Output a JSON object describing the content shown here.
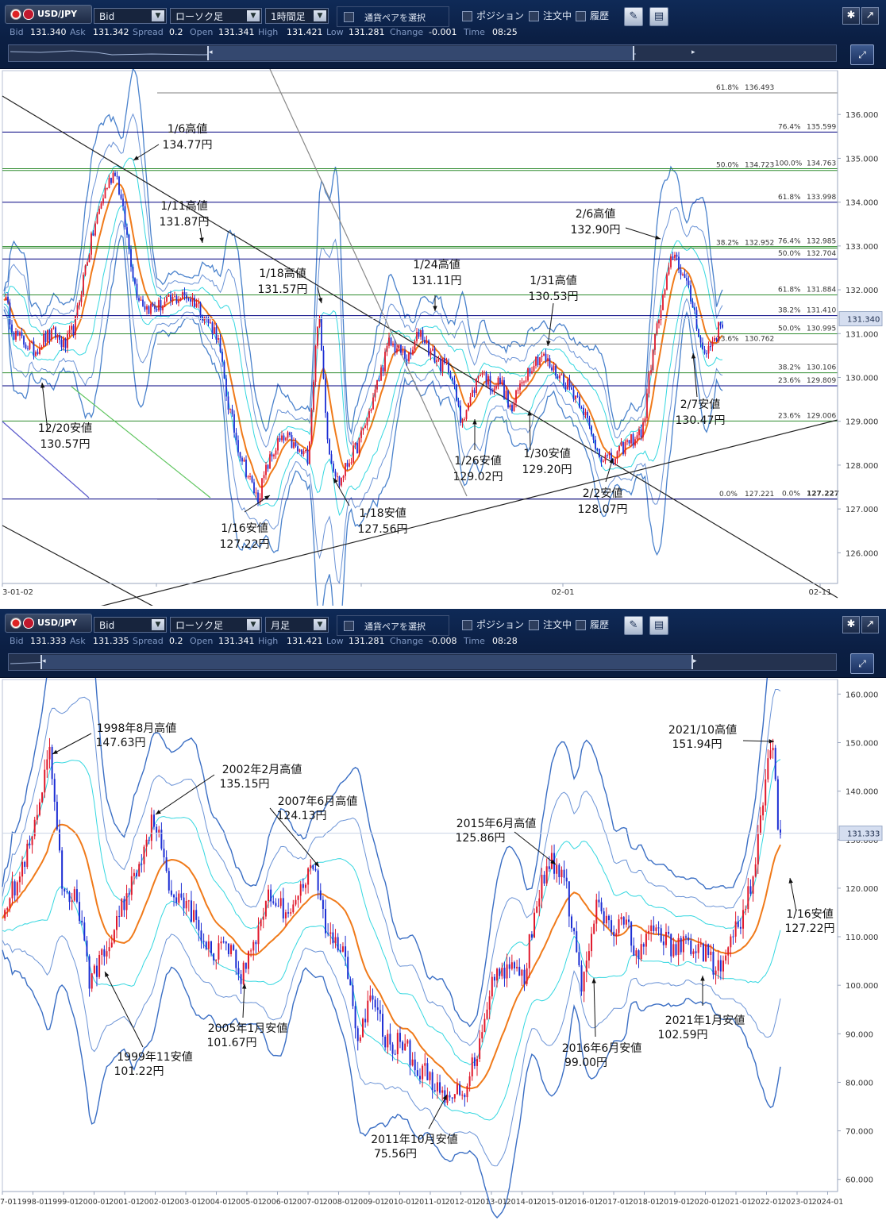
{
  "panel1": {
    "toolbar": {
      "symbol": "USD/JPY",
      "price_type": "Bid",
      "chart_type": "ローソク足",
      "timeframe": "1時間足",
      "pair_select": "通貨ペアを選択",
      "position": "ポジション",
      "orders": "注文中",
      "history": "履歴",
      "bid_label": "Bid",
      "bid": "131.340",
      "ask_label": "Ask",
      "ask": "131.342",
      "spread_label": "Spread",
      "spread": "0.2",
      "open_label": "Open",
      "open": "131.341",
      "high_label": "High",
      "high": "131.421",
      "low_label": "Low",
      "low": "131.281",
      "change_label": "Change",
      "change": "-0.001",
      "time_label": "Time",
      "time": "08:25"
    },
    "current_price": "131.340"
  },
  "panel2": {
    "toolbar": {
      "symbol": "USD/JPY",
      "price_type": "Bid",
      "chart_type": "ローソク足",
      "timeframe": "月足",
      "pair_select": "通貨ペアを選択",
      "position": "ポジション",
      "orders": "注文中",
      "history": "履歴",
      "bid_label": "Bid",
      "bid": "131.333",
      "ask_label": "Ask",
      "ask": "131.335",
      "spread_label": "Spread",
      "spread": "0.2",
      "open_label": "Open",
      "open": "131.341",
      "high_label": "High",
      "high": "131.421",
      "low_label": "Low",
      "low": "131.281",
      "change_label": "Change",
      "change": "-0.008",
      "time_label": "Time",
      "time": "08:28"
    },
    "current_price": "131.333"
  },
  "chart_data": [
    {
      "type": "candlestick",
      "ylim": [
        125.3,
        137.0
      ],
      "y_ticks": [
        "126.000",
        "127.000",
        "128.000",
        "129.000",
        "130.000",
        "131.000",
        "132.000",
        "133.000",
        "134.000",
        "135.000",
        "136.000"
      ],
      "x_ticks": [
        "3-01-02",
        "02-01",
        "02-11"
      ],
      "current_price": 131.34,
      "fib_levels": [
        {
          "label": "61.8%",
          "value": 136.493,
          "color": "#808080"
        },
        {
          "label": "76.4%",
          "value": 135.599,
          "color": "#000080"
        },
        {
          "label": "50.0%",
          "value": 134.723,
          "color": "#2e8b2e"
        },
        {
          "label": "100.0%",
          "value": 134.763,
          "color": "#2e8b2e"
        },
        {
          "label": "61.8%",
          "value": 133.998,
          "color": "#000080"
        },
        {
          "label": "38.2%",
          "value": 132.952,
          "color": "#2e8b2e"
        },
        {
          "label": "76.4%",
          "value": 132.985,
          "color": "#2e8b2e"
        },
        {
          "label": "50.0%",
          "value": 132.704,
          "color": "#000080"
        },
        {
          "label": "61.8%",
          "value": 131.884,
          "color": "#2e8b2e"
        },
        {
          "label": "38.2%",
          "value": 131.41,
          "color": "#000080"
        },
        {
          "label": "50.0%",
          "value": 130.995,
          "color": "#2e8b2e"
        },
        {
          "label": "23.6%",
          "value": 130.762,
          "color": "#808080"
        },
        {
          "label": "38.2%",
          "value": 130.106,
          "color": "#2e8b2e"
        },
        {
          "label": "23.6%",
          "value": 129.809,
          "color": "#000080"
        },
        {
          "label": "23.6%",
          "value": 129.006,
          "color": "#2e8b2e"
        },
        {
          "label": "0.0%",
          "value": 127.221,
          "color": "#808080"
        },
        {
          "label": "0.0%",
          "value": 127.227,
          "color": "#000080"
        }
      ],
      "annotations": [
        {
          "date": "1/6高値",
          "price": "134.77円"
        },
        {
          "date": "1/11高値",
          "price": "131.87円"
        },
        {
          "date": "1/18高値",
          "price": "131.57円"
        },
        {
          "date": "1/24高値",
          "price": "131.11円"
        },
        {
          "date": "1/31高値",
          "price": "130.53円"
        },
        {
          "date": "2/6高値",
          "price": "132.90円"
        },
        {
          "date": "12/20安値",
          "price": "130.57円"
        },
        {
          "date": "1/16安値",
          "price": "127.22円"
        },
        {
          "date": "1/18安値",
          "price": "127.56円"
        },
        {
          "date": "1/26安値",
          "price": "129.02円"
        },
        {
          "date": "1/30安値",
          "price": "129.20円"
        },
        {
          "date": "2/2安値",
          "price": "128.07円"
        },
        {
          "date": "2/7安値",
          "price": "130.47円"
        }
      ],
      "price_path": [
        131.9,
        131.0,
        130.8,
        130.6,
        130.9,
        131.0,
        130.7,
        131.2,
        132.5,
        133.5,
        134.3,
        134.77,
        133.4,
        132.0,
        131.6,
        131.6,
        131.7,
        131.8,
        131.87,
        131.7,
        131.3,
        131.0,
        129.5,
        128.5,
        127.8,
        127.22,
        128.0,
        128.5,
        128.6,
        128.3,
        128.2,
        131.57,
        128.4,
        127.56,
        128.1,
        128.5,
        129.2,
        130.0,
        130.8,
        130.6,
        130.4,
        131.11,
        130.6,
        130.3,
        130.2,
        129.02,
        129.5,
        130.2,
        129.8,
        129.9,
        129.2,
        129.9,
        130.3,
        130.53,
        130.2,
        130.0,
        129.7,
        129.4,
        128.6,
        128.2,
        128.07,
        128.4,
        128.6,
        128.8,
        130.7,
        131.8,
        132.9,
        132.3,
        131.6,
        130.47,
        130.9,
        131.34
      ]
    },
    {
      "type": "candlestick",
      "ylim": [
        57.5,
        163.0
      ],
      "y_ticks": [
        "60.000",
        "70.000",
        "80.000",
        "90.000",
        "100.000",
        "110.000",
        "120.000",
        "130.000",
        "140.000",
        "150.000",
        "160.000"
      ],
      "x_ticks": [
        "7-01",
        "1998-01",
        "1999-01",
        "2000-01",
        "2001-01",
        "2002-01",
        "2003-01",
        "2004-01",
        "2005-01",
        "2006-01",
        "2007-01",
        "2008-01",
        "2009-01",
        "2010-01",
        "2011-01",
        "2012-01",
        "2013-01",
        "2014-01",
        "2015-01",
        "2016-01",
        "2017-01",
        "2018-01",
        "2019-01",
        "2020-01",
        "2021-01",
        "2022-01",
        "2023-01",
        "2024-01"
      ],
      "current_price": 131.333,
      "annotations": [
        {
          "date": "1998年8月高値",
          "price": "147.63円"
        },
        {
          "date": "2002年2月高値",
          "price": "135.15円"
        },
        {
          "date": "2007年6月高値",
          "price": "124.13円"
        },
        {
          "date": "2015年6月高値",
          "price": "125.86円"
        },
        {
          "date": "2021/10高値",
          "price": "151.94円"
        },
        {
          "date": "1999年11安値",
          "price": "101.22円"
        },
        {
          "date": "2005年1月安値",
          "price": "101.67円"
        },
        {
          "date": "2011年10月安値",
          "price": "75.56円"
        },
        {
          "date": "2016年6月安値",
          "price": "99.00円"
        },
        {
          "date": "2021年1月安値",
          "price": "102.59円"
        },
        {
          "date": "1/16安値",
          "price": "127.22円"
        }
      ],
      "price_path": [
        [
          1997.0,
          116
        ],
        [
          1997.5,
          121
        ],
        [
          1998.0,
          130
        ],
        [
          1998.6,
          147.63
        ],
        [
          1999.0,
          120
        ],
        [
          1999.5,
          118
        ],
        [
          1999.9,
          101.22
        ],
        [
          2000.5,
          107
        ],
        [
          2001.0,
          116
        ],
        [
          2001.5,
          124
        ],
        [
          2002.1,
          135.15
        ],
        [
          2002.6,
          119
        ],
        [
          2003.0,
          119
        ],
        [
          2003.7,
          110
        ],
        [
          2004.0,
          106
        ],
        [
          2004.5,
          110
        ],
        [
          2005.0,
          101.67
        ],
        [
          2005.5,
          110
        ],
        [
          2005.9,
          119
        ],
        [
          2006.5,
          115
        ],
        [
          2006.9,
          119
        ],
        [
          2007.45,
          124.13
        ],
        [
          2007.9,
          110
        ],
        [
          2008.5,
          107
        ],
        [
          2008.9,
          90
        ],
        [
          2009.4,
          97
        ],
        [
          2009.9,
          88
        ],
        [
          2010.5,
          88
        ],
        [
          2010.9,
          82
        ],
        [
          2011.3,
          82
        ],
        [
          2011.8,
          75.56
        ],
        [
          2012.5,
          79
        ],
        [
          2012.9,
          86
        ],
        [
          2013.4,
          101
        ],
        [
          2013.9,
          104
        ],
        [
          2014.5,
          102
        ],
        [
          2014.9,
          118
        ],
        [
          2015.45,
          125.86
        ],
        [
          2015.9,
          120
        ],
        [
          2016.45,
          99.0
        ],
        [
          2016.9,
          116
        ],
        [
          2017.5,
          111
        ],
        [
          2017.9,
          113
        ],
        [
          2018.3,
          106
        ],
        [
          2018.9,
          112
        ],
        [
          2019.5,
          107
        ],
        [
          2019.9,
          109
        ],
        [
          2020.5,
          107
        ],
        [
          2021.05,
          102.59
        ],
        [
          2021.5,
          110
        ],
        [
          2021.9,
          115
        ],
        [
          2022.3,
          128
        ],
        [
          2022.8,
          151.94
        ],
        [
          2022.95,
          138
        ],
        [
          2023.05,
          127.22
        ],
        [
          2023.1,
          130.5
        ]
      ]
    }
  ]
}
